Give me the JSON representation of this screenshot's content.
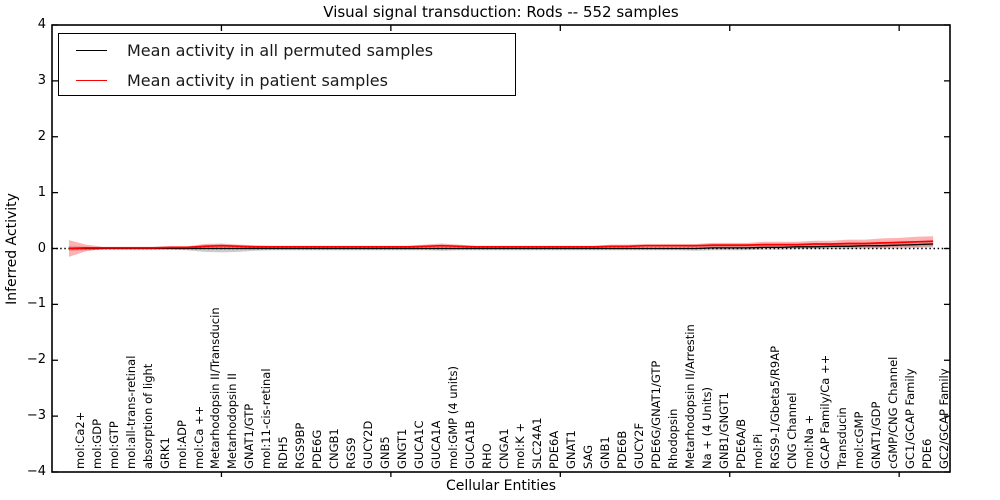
{
  "window": {
    "title": "Visual signal transduction: Rods -- 552 samples"
  },
  "legend": {
    "items": [
      {
        "label": "Mean activity in all permuted samples",
        "color": "#000000"
      },
      {
        "label": "Mean activity in patient samples",
        "color": "#ff0000"
      }
    ],
    "position": "upper left"
  },
  "axes": {
    "ylabel": "Inferred Activity",
    "xlabel": "Cellular Entities",
    "ytick_labels": [
      "4",
      "3",
      "2",
      "1",
      "0",
      "−1",
      "−2",
      "−3",
      "−4"
    ]
  },
  "chart_data": {
    "type": "line",
    "title": "Visual signal transduction: Rods -- 552 samples",
    "xlabel": "Cellular Entities",
    "ylabel": "Inferred Activity",
    "ylim": [
      -4,
      4
    ],
    "xlim": [
      0,
      53
    ],
    "ytick_values": [
      4,
      3,
      2,
      1,
      0,
      -1,
      -2,
      -3,
      -4
    ],
    "xtick_values": [
      10,
      20,
      30,
      40,
      50
    ],
    "grid": false,
    "legend_position": "upper left",
    "zero_line": {
      "y": 0,
      "style": "dotted",
      "color": "#000000"
    },
    "categories": [
      "mol:Ca2+",
      "mol:GDP",
      "mol:GTP",
      "mol:all-trans-retinal",
      "absorption of light",
      "GRK1",
      "mol:ADP",
      "mol:Ca ++",
      "Metarhodopsin II/Transducin",
      "Metarhodopsin II",
      "GNAT1/GTP",
      "mol:11-cis-retinal",
      "RDH5",
      "RGS9BP",
      "PDE6G",
      "CNGB1",
      "RGS9",
      "GUCY2D",
      "GNB5",
      "GNGT1",
      "GUCA1C",
      "GUCA1A",
      "mol:GMP (4 units)",
      "GUCA1B",
      "RHO",
      "CNGA1",
      "mol:K +",
      "SLC24A1",
      "PDE6A",
      "GNAT1",
      "SAG",
      "GNB1",
      "PDE6B",
      "GUCY2F",
      "PDE6G/GNAT1/GTP",
      "Rhodopsin",
      "Metarhodopsin II/Arrestin",
      "Na + (4 Units)",
      "GNB1/GNGT1",
      "PDE6A/B",
      "mol:Pi",
      "RGS9-1/Gbeta5/R9AP",
      "CNG Channel",
      "mol:Na +",
      "GCAP Family/Ca ++",
      "Transducin",
      "mol:cGMP",
      "GNAT1/GDP",
      "cGMP/CNG Channel",
      "GC1/GCAP Family",
      "PDE6",
      "GC2/GCAP Family"
    ],
    "series": [
      {
        "name": "Mean activity in all permuted samples",
        "color": "#000000",
        "band_color": "rgba(110,110,110,0.35)",
        "values": [
          0,
          0,
          0,
          0,
          0,
          0,
          0,
          0,
          0,
          0,
          0,
          0,
          0,
          0,
          0,
          0,
          0,
          0,
          0,
          0,
          0,
          0,
          0,
          0,
          0,
          0,
          0,
          0,
          0,
          0,
          0,
          0,
          0,
          0,
          0,
          0,
          0,
          0,
          0.01,
          0.01,
          0.01,
          0.02,
          0.02,
          0.03,
          0.03,
          0.04,
          0.04,
          0.05,
          0.05,
          0.06,
          0.07,
          0.08
        ],
        "band_halfwidth": [
          0.04,
          0.03,
          0.02,
          0.02,
          0.02,
          0.02,
          0.02,
          0.03,
          0.06,
          0.07,
          0.06,
          0.04,
          0.03,
          0.03,
          0.03,
          0.03,
          0.03,
          0.03,
          0.03,
          0.03,
          0.03,
          0.03,
          0.04,
          0.03,
          0.03,
          0.03,
          0.03,
          0.03,
          0.03,
          0.03,
          0.03,
          0.03,
          0.03,
          0.03,
          0.03,
          0.03,
          0.03,
          0.04,
          0.04,
          0.04,
          0.04,
          0.04,
          0.04,
          0.04,
          0.04,
          0.05,
          0.05,
          0.05,
          0.05,
          0.06,
          0.06,
          0.06
        ]
      },
      {
        "name": "Mean activity in patient samples",
        "color": "#ff0000",
        "band_color": "rgba(255,0,0,0.30)",
        "values": [
          0.0,
          0.01,
          0.01,
          0.01,
          0.01,
          0.01,
          0.02,
          0.02,
          0.04,
          0.05,
          0.04,
          0.03,
          0.03,
          0.03,
          0.03,
          0.03,
          0.03,
          0.03,
          0.03,
          0.03,
          0.03,
          0.04,
          0.05,
          0.04,
          0.03,
          0.03,
          0.03,
          0.03,
          0.03,
          0.03,
          0.03,
          0.03,
          0.04,
          0.04,
          0.05,
          0.05,
          0.05,
          0.05,
          0.06,
          0.06,
          0.06,
          0.07,
          0.07,
          0.07,
          0.08,
          0.08,
          0.09,
          0.09,
          0.1,
          0.11,
          0.12,
          0.13
        ],
        "band_halfwidth": [
          0.15,
          0.06,
          0.02,
          0.02,
          0.02,
          0.02,
          0.02,
          0.02,
          0.04,
          0.04,
          0.03,
          0.03,
          0.02,
          0.02,
          0.02,
          0.02,
          0.02,
          0.02,
          0.02,
          0.02,
          0.02,
          0.03,
          0.04,
          0.03,
          0.02,
          0.02,
          0.02,
          0.02,
          0.02,
          0.02,
          0.02,
          0.02,
          0.03,
          0.03,
          0.03,
          0.03,
          0.03,
          0.03,
          0.04,
          0.04,
          0.04,
          0.05,
          0.05,
          0.05,
          0.06,
          0.06,
          0.07,
          0.07,
          0.08,
          0.08,
          0.09,
          0.09
        ]
      }
    ]
  }
}
